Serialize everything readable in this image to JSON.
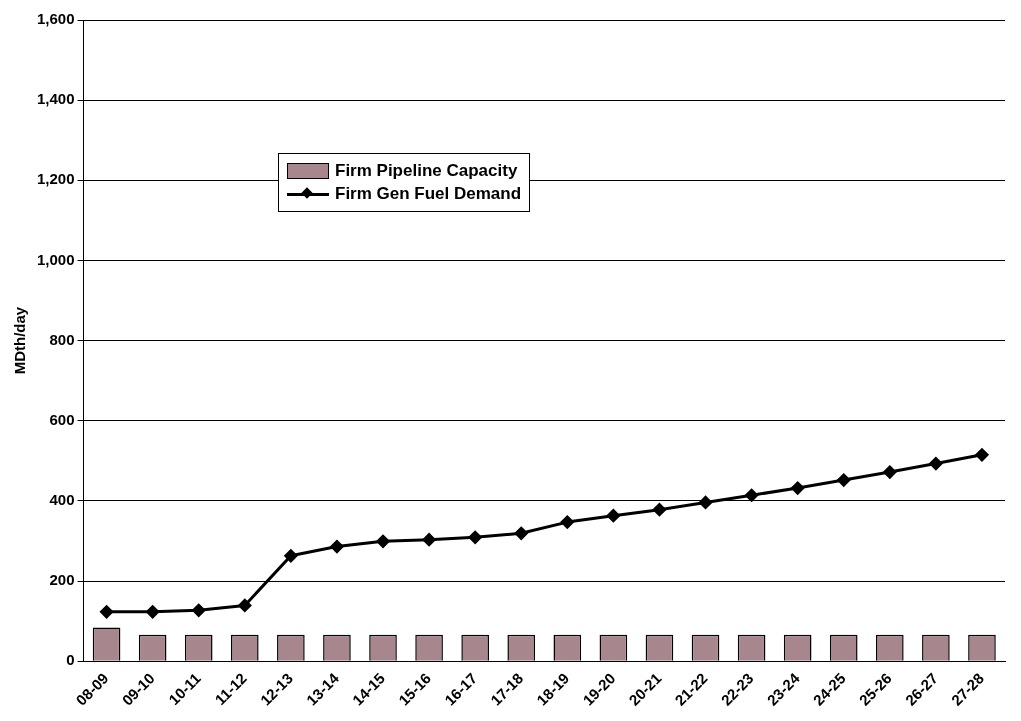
{
  "chart_data": {
    "type": "bar",
    "ylabel": "MDth/day",
    "categories": [
      "08-09",
      "09-10",
      "10-11",
      "11-12",
      "12-13",
      "13-14",
      "14-15",
      "15-16",
      "16-17",
      "17-18",
      "18-19",
      "19-20",
      "20-21",
      "21-22",
      "22-23",
      "23-24",
      "24-25",
      "25-26",
      "26-27",
      "27-28"
    ],
    "series": [
      {
        "name": "Firm Pipeline Capacity",
        "color": "#a8868e",
        "values": [
          84,
          66,
          66,
          66,
          66,
          66,
          66,
          66,
          66,
          66,
          66,
          66,
          66,
          66,
          66,
          66,
          66,
          66,
          66,
          66
        ]
      },
      {
        "name": "Firm Gen Fuel Demand",
        "type": "line",
        "color": "#000000",
        "marker": "diamond",
        "line_style": "solid",
        "values": [
          123,
          123,
          127,
          139,
          263,
          286,
          299,
          303,
          309,
          319,
          347,
          363,
          378,
          396,
          414,
          432,
          452,
          472,
          493,
          515
        ]
      }
    ],
    "ylim": [
      0,
      1600
    ],
    "yticks": [
      0,
      200,
      400,
      600,
      800,
      {
        "value": 1000,
        "label": "1,000"
      },
      {
        "value": 1200,
        "label": "1,200"
      },
      {
        "value": 1400,
        "label": "1,400"
      },
      {
        "value": 1600,
        "label": "1,600"
      }
    ],
    "grid": "y",
    "legend": "top left"
  }
}
